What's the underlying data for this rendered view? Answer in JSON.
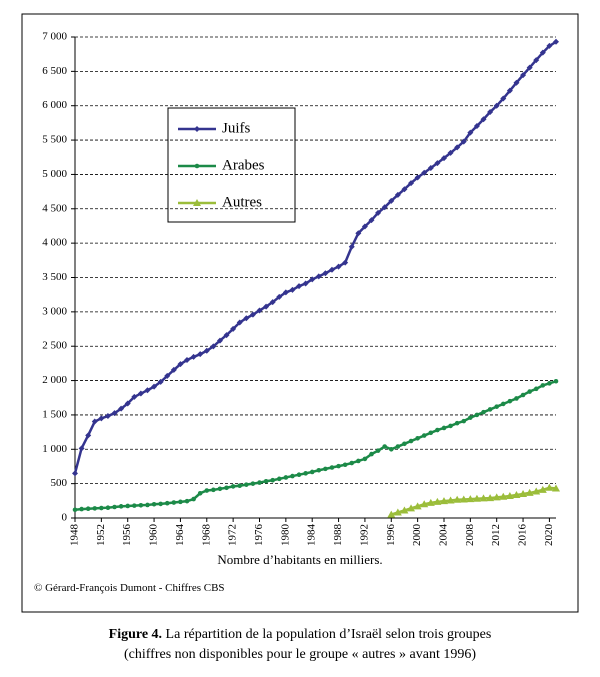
{
  "chart_data": {
    "type": "line",
    "figure_label": "Figure 4.",
    "caption": [
      "La répartition de la population d’Israël selon trois groupes",
      "(chiffres non disponibles pour le groupe « autres » avant 1996)"
    ],
    "x_label": "Nombre d’habitants en milliers.",
    "source": "© Gérard-François Dumont - Chiffres CBS",
    "x": [
      1948,
      1949,
      1950,
      1951,
      1952,
      1953,
      1954,
      1955,
      1956,
      1957,
      1958,
      1959,
      1960,
      1961,
      1962,
      1963,
      1964,
      1965,
      1966,
      1967,
      1968,
      1969,
      1970,
      1971,
      1972,
      1973,
      1974,
      1975,
      1976,
      1977,
      1978,
      1979,
      1980,
      1981,
      1982,
      1983,
      1984,
      1985,
      1986,
      1987,
      1988,
      1989,
      1990,
      1991,
      1992,
      1993,
      1994,
      1995,
      1996,
      1997,
      1998,
      1999,
      2000,
      2001,
      2002,
      2003,
      2004,
      2005,
      2006,
      2007,
      2008,
      2009,
      2010,
      2011,
      2012,
      2013,
      2014,
      2015,
      2016,
      2017,
      2018,
      2019,
      2020,
      2021
    ],
    "series": [
      {
        "name": "Juifs",
        "color": "#34348f",
        "marker": "diamond",
        "values": [
          650,
          1014,
          1203,
          1404,
          1450,
          1484,
          1526,
          1591,
          1667,
          1763,
          1811,
          1859,
          1911,
          1981,
          2068,
          2155,
          2239,
          2299,
          2344,
          2384,
          2434,
          2497,
          2582,
          2662,
          2752,
          2845,
          2907,
          2959,
          3020,
          3077,
          3141,
          3218,
          3283,
          3320,
          3374,
          3413,
          3472,
          3517,
          3562,
          3613,
          3659,
          3717,
          3947,
          4144,
          4242,
          4335,
          4441,
          4522,
          4616,
          4702,
          4785,
          4874,
          4955,
          5025,
          5094,
          5165,
          5238,
          5314,
          5393,
          5478,
          5609,
          5704,
          5803,
          5908,
          5999,
          6105,
          6219,
          6335,
          6446,
          6555,
          6664,
          6773,
          6870,
          6930
        ]
      },
      {
        "name": "Arabes",
        "color": "#1c8a48",
        "marker": "circle",
        "values": [
          120,
          130,
          135,
          140,
          145,
          150,
          160,
          170,
          175,
          180,
          185,
          190,
          200,
          205,
          215,
          225,
          235,
          245,
          275,
          360,
          400,
          410,
          425,
          440,
          460,
          470,
          485,
          500,
          515,
          535,
          550,
          570,
          590,
          610,
          630,
          650,
          670,
          695,
          715,
          735,
          755,
          775,
          800,
          830,
          860,
          930,
          980,
          1040,
          1000,
          1040,
          1080,
          1120,
          1160,
          1200,
          1240,
          1280,
          1310,
          1340,
          1380,
          1410,
          1460,
          1500,
          1540,
          1580,
          1620,
          1660,
          1700,
          1740,
          1790,
          1840,
          1880,
          1930,
          1960,
          1990
        ]
      },
      {
        "name": "Autres",
        "color": "#9bbd3a",
        "marker": "triangle",
        "values": [
          null,
          null,
          null,
          null,
          null,
          null,
          null,
          null,
          null,
          null,
          null,
          null,
          null,
          null,
          null,
          null,
          null,
          null,
          null,
          null,
          null,
          null,
          null,
          null,
          null,
          null,
          null,
          null,
          null,
          null,
          null,
          null,
          null,
          null,
          null,
          null,
          null,
          null,
          null,
          null,
          null,
          null,
          null,
          null,
          null,
          null,
          null,
          null,
          50,
          80,
          110,
          140,
          170,
          200,
          220,
          235,
          245,
          255,
          265,
          270,
          275,
          280,
          285,
          290,
          300,
          310,
          320,
          335,
          350,
          365,
          385,
          410,
          440,
          430
        ]
      }
    ],
    "xlim": [
      1948,
      2021
    ],
    "xticks": [
      1948,
      1952,
      1956,
      1960,
      1964,
      1968,
      1972,
      1976,
      1980,
      1984,
      1988,
      1992,
      1996,
      2000,
      2004,
      2008,
      2012,
      2016,
      2020
    ],
    "ylim": [
      0,
      7000
    ],
    "yticks": [
      0,
      500,
      {
        "value": 1000,
        "label": "1 000"
      },
      {
        "value": 1500,
        "label": "1 500"
      },
      {
        "value": 2000,
        "label": "2 000"
      },
      {
        "value": 2500,
        "label": "2 500"
      },
      {
        "value": 3000,
        "label": "3 000"
      },
      {
        "value": 3500,
        "label": "3 500"
      },
      {
        "value": 4000,
        "label": "4 000"
      },
      {
        "value": 4500,
        "label": "4 500"
      },
      {
        "value": 5000,
        "label": "5 000"
      },
      {
        "value": 5500,
        "label": "5 500"
      },
      {
        "value": 6000,
        "label": "6 000"
      },
      {
        "value": 6500,
        "label": "6 500"
      },
      {
        "value": 7000,
        "label": "7 000"
      }
    ],
    "grid": true
  }
}
